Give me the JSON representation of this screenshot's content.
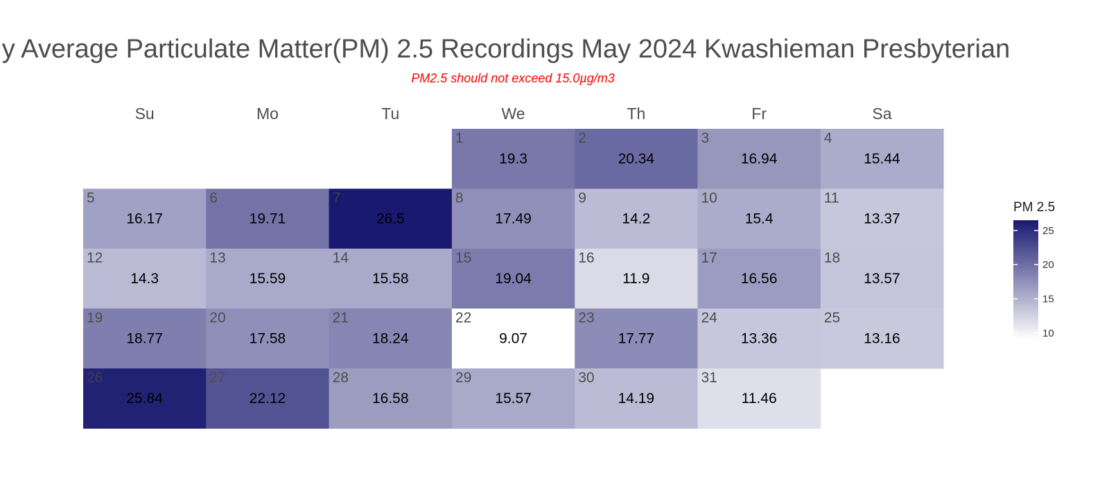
{
  "title": "y Average Particulate Matter(PM) 2.5 Recordings May 2024 Kwashieman Presbyterian",
  "subtitle": "PM2.5 should not exceed 15.0µg/m3",
  "chart_data": {
    "type": "heatmap",
    "month": "May 2024",
    "weekdays": [
      "Su",
      "Mo",
      "Tu",
      "We",
      "Th",
      "Fr",
      "Sa"
    ],
    "first_weekday_index": 3,
    "days": [
      1,
      2,
      3,
      4,
      5,
      6,
      7,
      8,
      9,
      10,
      11,
      12,
      13,
      14,
      15,
      16,
      17,
      18,
      19,
      20,
      21,
      22,
      23,
      24,
      25,
      26,
      27,
      28,
      29,
      30,
      31
    ],
    "values": [
      19.3,
      20.34,
      16.94,
      15.44,
      16.17,
      19.71,
      26.5,
      17.49,
      14.2,
      15.4,
      13.37,
      14.3,
      15.59,
      15.58,
      19.04,
      11.9,
      16.56,
      13.57,
      18.77,
      17.58,
      18.24,
      9.07,
      17.77,
      13.36,
      13.16,
      25.84,
      22.12,
      16.58,
      15.57,
      14.19,
      11.46
    ],
    "legend": {
      "title": "PM 2.5",
      "ticks": [
        10,
        15,
        20,
        25
      ],
      "range": [
        9.07,
        26.5
      ],
      "colors": {
        "low": "#ffffff",
        "high": "#191970"
      },
      "placement": "right"
    }
  }
}
